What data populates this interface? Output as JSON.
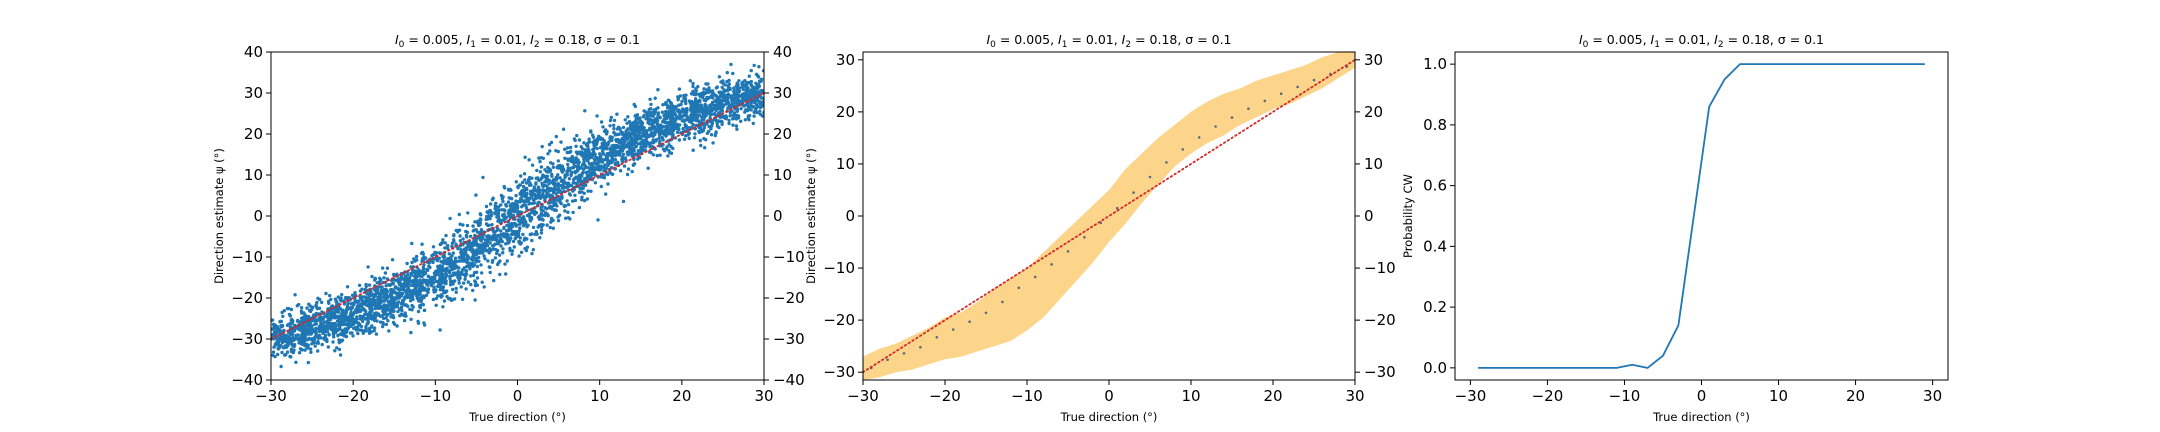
{
  "figure": {
    "background": "#ffffff"
  },
  "chart_data": [
    {
      "type": "scatter",
      "title": "I_0 = 0.005, I_1 = 0.01, I_2 = 0.18, σ = 0.1",
      "title_parts": [
        "I",
        "0",
        " = 0.005, ",
        "I",
        "1",
        " = 0.01, ",
        "I",
        "2",
        " = 0.18, σ = 0.1"
      ],
      "xlabel": "True direction (°)",
      "ylabel": "Direction estimate ψ (°)",
      "xlim": [
        -30,
        30
      ],
      "ylim": [
        -40,
        40
      ],
      "xticks": [
        -30,
        -20,
        -10,
        0,
        10,
        20,
        30
      ],
      "yticks": [
        -40,
        -30,
        -20,
        -10,
        0,
        10,
        20,
        30,
        40
      ],
      "right_yticks": [
        -40,
        -30,
        -20,
        -10,
        0,
        10,
        20,
        30,
        40
      ],
      "grid": false,
      "colors": {
        "points": "#1f77b4",
        "diagonal": "#d62728"
      },
      "series": [
        {
          "kind": "scatter",
          "n_points": 4000,
          "mean_curve": {
            "x": [
              -30,
              -25,
              -20,
              -15,
              -10,
              -5,
              0,
              5,
              10,
              15,
              20,
              25,
              30
            ],
            "y": [
              -30,
              -27.5,
              -24,
              -19.5,
              -14.5,
              -7.5,
              0,
              7.5,
              14.5,
              19.5,
              24,
              27.5,
              30
            ]
          },
          "spread_sd": {
            "x": [
              -30,
              -20,
              -10,
              0,
              10,
              20,
              30
            ],
            "y": [
              2.6,
              3.0,
              3.6,
              4.6,
              3.6,
              3.0,
              2.6
            ]
          }
        },
        {
          "kind": "line",
          "style": "dotted",
          "x": [
            -30,
            30
          ],
          "y": [
            -30,
            30
          ]
        }
      ]
    },
    {
      "type": "line",
      "title": "I_0 = 0.005, I_1 = 0.01, I_2 = 0.18, σ = 0.1",
      "title_parts": [
        "I",
        "0",
        " = 0.005, ",
        "I",
        "1",
        " = 0.01, ",
        "I",
        "2",
        " = 0.18, σ = 0.1"
      ],
      "xlabel": "True direction (°)",
      "ylabel": "Direction estimate ψ (°)",
      "xlim": [
        -30,
        30
      ],
      "ylim": [
        -31.5,
        31.5
      ],
      "xticks": [
        -30,
        -20,
        -10,
        0,
        10,
        20,
        30
      ],
      "yticks": [
        -30,
        -20,
        -10,
        0,
        10,
        20,
        30
      ],
      "right_yticks": [
        -30,
        -20,
        -10,
        0,
        10,
        20,
        30
      ],
      "grid": false,
      "colors": {
        "band": "#fdd58a",
        "points": "#5a6a80",
        "diagonal": "#d62728"
      },
      "series": [
        {
          "kind": "band",
          "x": [
            -30,
            -28,
            -26,
            -24,
            -22,
            -20,
            -18,
            -16,
            -14,
            -12,
            -10,
            -8,
            -6,
            -4,
            -2,
            0,
            2,
            4,
            6,
            8,
            10,
            12,
            14,
            16,
            18,
            20,
            22,
            24,
            26,
            28,
            30
          ],
          "lower": [
            -31.5,
            -31,
            -30,
            -29.5,
            -28.5,
            -27.5,
            -27,
            -26,
            -25,
            -24,
            -22,
            -19.5,
            -16,
            -12.5,
            -9,
            -5,
            -1.5,
            2.5,
            6,
            9.5,
            12,
            14,
            15.5,
            17.5,
            19,
            20.5,
            21.5,
            23,
            24.5,
            26.5,
            28.5
          ],
          "upper": [
            -27,
            -25.5,
            -24.5,
            -23,
            -21.5,
            -19.5,
            -18.5,
            -16.5,
            -14,
            -12,
            -10,
            -7,
            -4,
            -1,
            2,
            5,
            9,
            12,
            15,
            17.5,
            20,
            22,
            23.5,
            24.5,
            26,
            27,
            28,
            29,
            30.5,
            31.5,
            31.5
          ]
        },
        {
          "kind": "points",
          "x": [
            -29,
            -27,
            -25,
            -23,
            -21,
            -19,
            -17,
            -15,
            -13,
            -11,
            -9,
            -7,
            -5,
            -3,
            -1,
            1,
            3,
            5,
            7,
            9,
            11,
            13,
            15,
            17,
            19,
            21,
            23,
            25,
            27,
            29
          ],
          "y": [
            -29.2,
            -27.6,
            -26.4,
            -25.2,
            -23.3,
            -21.8,
            -20.3,
            -18.6,
            -16.5,
            -13.8,
            -11.7,
            -9.3,
            -6.8,
            -4.1,
            -1.3,
            1.5,
            4.5,
            7.5,
            10.3,
            12.8,
            15.1,
            17.2,
            18.9,
            20.6,
            22.1,
            23.5,
            24.8,
            26.1,
            27.3,
            28.7
          ]
        },
        {
          "kind": "line",
          "style": "dotted",
          "x": [
            -30,
            30
          ],
          "y": [
            -30,
            30
          ]
        }
      ]
    },
    {
      "type": "line",
      "title": "I_0 = 0.005, I_1 = 0.01, I_2 = 0.18, σ = 0.1",
      "title_parts": [
        "I",
        "0",
        " = 0.005, ",
        "I",
        "1",
        " = 0.01, ",
        "I",
        "2",
        " = 0.18, σ = 0.1"
      ],
      "xlabel": "True direction (°)",
      "ylabel": "Probability CW",
      "xlim": [
        -32,
        32
      ],
      "ylim": [
        -0.04,
        1.04
      ],
      "xticks": [
        -30,
        -20,
        -10,
        0,
        10,
        20,
        30
      ],
      "yticks": [
        0.0,
        0.2,
        0.4,
        0.6,
        0.8,
        1.0
      ],
      "ytick_labels": [
        "0.0",
        "0.2",
        "0.4",
        "0.6",
        "0.8",
        "1.0"
      ],
      "grid": false,
      "colors": {
        "line": "#1f77b4"
      },
      "series": [
        {
          "kind": "line",
          "x": [
            -29,
            -27,
            -25,
            -23,
            -21,
            -19,
            -17,
            -15,
            -13,
            -11,
            -9,
            -7,
            -5,
            -3,
            -1,
            1,
            3,
            5,
            7,
            9,
            11,
            13,
            15,
            17,
            19,
            21,
            23,
            25,
            27,
            29
          ],
          "y": [
            0,
            0,
            0,
            0,
            0,
            0,
            0,
            0,
            0,
            0,
            0.01,
            0.0,
            0.04,
            0.14,
            0.5,
            0.86,
            0.95,
            1,
            1,
            1,
            1,
            1,
            1,
            1,
            1,
            1,
            1,
            1,
            1,
            1
          ]
        }
      ]
    }
  ]
}
